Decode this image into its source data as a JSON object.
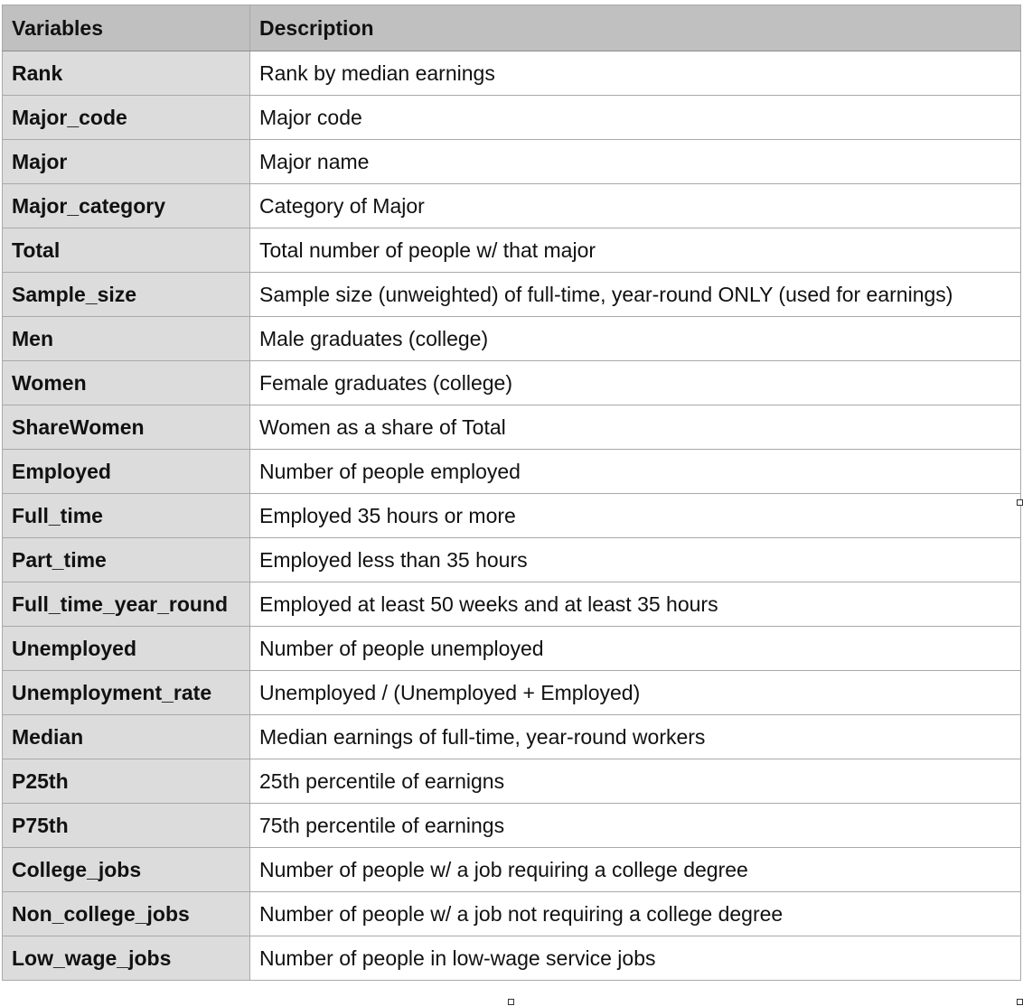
{
  "table": {
    "headers": [
      "Variables",
      "Description"
    ],
    "rows": [
      [
        "Rank",
        "Rank by median earnings"
      ],
      [
        "Major_code",
        "Major code"
      ],
      [
        "Major",
        "Major name"
      ],
      [
        "Major_category",
        "Category of Major"
      ],
      [
        "Total",
        "Total number of people w/ that major"
      ],
      [
        "Sample_size",
        "Sample size (unweighted) of full-time, year-round ONLY (used for earnings)"
      ],
      [
        "Men",
        "Male graduates (college)"
      ],
      [
        "Women",
        "Female graduates (college)"
      ],
      [
        "ShareWomen",
        "Women as a share of Total"
      ],
      [
        "Employed",
        "Number of people employed"
      ],
      [
        "Full_time",
        "Employed 35 hours or more"
      ],
      [
        "Part_time",
        "Employed less than 35 hours"
      ],
      [
        "Full_time_year_round",
        "Employed at least 50 weeks and at least 35 hours"
      ],
      [
        "Unemployed",
        "Number of people unemployed"
      ],
      [
        "Unemployment_rate",
        "Unemployed / (Unemployed + Employed)"
      ],
      [
        "Median",
        "Median earnings of full-time, year-round workers"
      ],
      [
        "P25th",
        "25th percentile of earnigns"
      ],
      [
        "P75th",
        "75th percentile of earnings"
      ],
      [
        "College_jobs",
        "Number of people w/ a job requiring a college degree"
      ],
      [
        "Non_college_jobs",
        "Number of people w/ a job not requiring a college degree"
      ],
      [
        "Low_wage_jobs",
        "Number of people in low-wage service jobs"
      ]
    ]
  },
  "colors": {
    "header_bg": "#bfc0bf",
    "variable_cell_bg": "#dcdcdc",
    "description_cell_bg": "#ffffff",
    "border": "#a9a9a9"
  }
}
